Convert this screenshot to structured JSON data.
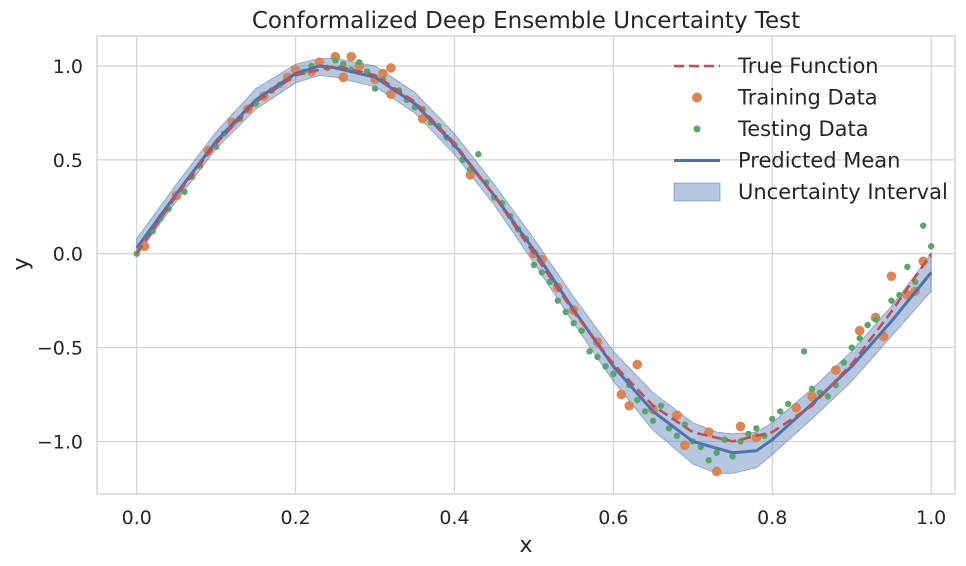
{
  "chart_data": {
    "type": "line",
    "title": "Conformalized Deep Ensemble Uncertainty Test",
    "xlabel": "x",
    "ylabel": "y",
    "xlim": [
      -0.05,
      1.03
    ],
    "ylim": [
      -1.28,
      1.16
    ],
    "x_ticks": [
      0.0,
      0.2,
      0.4,
      0.6,
      0.8,
      1.0
    ],
    "x_tick_labels": [
      "0.0",
      "0.2",
      "0.4",
      "0.6",
      "0.8",
      "1.0"
    ],
    "y_ticks": [
      -1.0,
      -0.5,
      0.0,
      0.5,
      1.0
    ],
    "y_tick_labels": [
      "−1.0",
      "−0.5",
      "0.0",
      "0.5",
      "1.0"
    ],
    "grid": true,
    "legend_position": "top-right",
    "colors": {
      "true_function": "#c44e52",
      "training": "#dd8452",
      "testing": "#55a868",
      "predicted": "#4c72b0",
      "band": "#4c72b0"
    },
    "legend": [
      {
        "key": "true",
        "label": "True Function"
      },
      {
        "key": "train",
        "label": "Training Data"
      },
      {
        "key": "test",
        "label": "Testing Data"
      },
      {
        "key": "mean",
        "label": "Predicted Mean"
      },
      {
        "key": "band",
        "label": "Uncertainty Interval"
      }
    ],
    "true_function": {
      "x": [
        0.0,
        0.05,
        0.1,
        0.15,
        0.2,
        0.25,
        0.3,
        0.35,
        0.4,
        0.45,
        0.5,
        0.55,
        0.6,
        0.65,
        0.7,
        0.75,
        0.8,
        0.85,
        0.9,
        0.95,
        1.0
      ],
      "y": [
        0.0,
        0.309,
        0.588,
        0.809,
        0.951,
        1.0,
        0.951,
        0.809,
        0.588,
        0.309,
        0.0,
        -0.309,
        -0.588,
        -0.809,
        -0.951,
        -1.0,
        -0.951,
        -0.809,
        -0.588,
        -0.309,
        0.0
      ]
    },
    "predicted_mean": {
      "x": [
        0.0,
        0.05,
        0.1,
        0.15,
        0.2,
        0.23,
        0.25,
        0.3,
        0.35,
        0.4,
        0.45,
        0.5,
        0.55,
        0.6,
        0.65,
        0.7,
        0.75,
        0.78,
        0.8,
        0.85,
        0.9,
        0.95,
        1.0
      ],
      "y": [
        0.03,
        0.32,
        0.6,
        0.82,
        0.96,
        1.0,
        0.99,
        0.94,
        0.8,
        0.58,
        0.31,
        0.02,
        -0.3,
        -0.6,
        -0.84,
        -1.0,
        -1.06,
        -1.05,
        -0.99,
        -0.8,
        -0.6,
        -0.36,
        -0.1
      ]
    },
    "uncertainty_interval": {
      "x": [
        0.0,
        0.05,
        0.1,
        0.15,
        0.2,
        0.23,
        0.25,
        0.3,
        0.35,
        0.4,
        0.45,
        0.5,
        0.55,
        0.6,
        0.65,
        0.7,
        0.73,
        0.75,
        0.78,
        0.8,
        0.85,
        0.9,
        0.95,
        1.0
      ],
      "lower": [
        -0.01,
        0.28,
        0.56,
        0.77,
        0.91,
        0.95,
        0.94,
        0.89,
        0.75,
        0.53,
        0.26,
        -0.05,
        -0.37,
        -0.68,
        -0.94,
        -1.12,
        -1.17,
        -1.17,
        -1.14,
        -1.07,
        -0.88,
        -0.68,
        -0.44,
        -0.2
      ],
      "upper": [
        0.08,
        0.37,
        0.65,
        0.88,
        1.01,
        1.04,
        1.04,
        1.0,
        0.86,
        0.64,
        0.37,
        0.08,
        -0.23,
        -0.52,
        -0.74,
        -0.9,
        -0.95,
        -0.96,
        -0.95,
        -0.9,
        -0.72,
        -0.52,
        -0.28,
        0.0
      ]
    },
    "training_data": [
      [
        0.01,
        0.04
      ],
      [
        0.05,
        0.31
      ],
      [
        0.09,
        0.55
      ],
      [
        0.12,
        0.7
      ],
      [
        0.14,
        0.77
      ],
      [
        0.16,
        0.84
      ],
      [
        0.19,
        0.94
      ],
      [
        0.2,
        0.98
      ],
      [
        0.22,
        0.97
      ],
      [
        0.23,
        1.02
      ],
      [
        0.25,
        1.05
      ],
      [
        0.26,
        0.94
      ],
      [
        0.27,
        1.05
      ],
      [
        0.28,
        1.0
      ],
      [
        0.3,
        0.93
      ],
      [
        0.31,
        0.96
      ],
      [
        0.32,
        0.99
      ],
      [
        0.32,
        0.85
      ],
      [
        0.36,
        0.72
      ],
      [
        0.42,
        0.42
      ],
      [
        0.5,
        0.0
      ],
      [
        0.51,
        -0.03
      ],
      [
        0.53,
        -0.18
      ],
      [
        0.55,
        -0.3
      ],
      [
        0.58,
        -0.47
      ],
      [
        0.61,
        -0.75
      ],
      [
        0.62,
        -0.81
      ],
      [
        0.63,
        -0.59
      ],
      [
        0.65,
        -0.83
      ],
      [
        0.68,
        -0.86
      ],
      [
        0.69,
        -1.02
      ],
      [
        0.72,
        -0.95
      ],
      [
        0.73,
        -1.16
      ],
      [
        0.76,
        -0.92
      ],
      [
        0.78,
        -0.98
      ],
      [
        0.83,
        -0.82
      ],
      [
        0.85,
        -0.76
      ],
      [
        0.88,
        -0.62
      ],
      [
        0.91,
        -0.41
      ],
      [
        0.93,
        -0.34
      ],
      [
        0.94,
        -0.44
      ],
      [
        0.95,
        -0.12
      ],
      [
        0.97,
        -0.22
      ],
      [
        0.98,
        -0.2
      ],
      [
        0.99,
        -0.04
      ]
    ],
    "testing_data": [
      [
        0.0,
        0.0
      ],
      [
        0.02,
        0.12
      ],
      [
        0.03,
        0.19
      ],
      [
        0.04,
        0.24
      ],
      [
        0.06,
        0.33
      ],
      [
        0.07,
        0.41
      ],
      [
        0.08,
        0.47
      ],
      [
        0.1,
        0.57
      ],
      [
        0.11,
        0.64
      ],
      [
        0.13,
        0.72
      ],
      [
        0.15,
        0.8
      ],
      [
        0.17,
        0.87
      ],
      [
        0.18,
        0.9
      ],
      [
        0.21,
        0.97
      ],
      [
        0.22,
        1.0
      ],
      [
        0.24,
        0.99
      ],
      [
        0.25,
        1.03
      ],
      [
        0.26,
        1.01
      ],
      [
        0.27,
        0.98
      ],
      [
        0.28,
        1.02
      ],
      [
        0.29,
        0.97
      ],
      [
        0.3,
        0.88
      ],
      [
        0.31,
        0.93
      ],
      [
        0.33,
        0.87
      ],
      [
        0.34,
        0.82
      ],
      [
        0.35,
        0.78
      ],
      [
        0.36,
        0.77
      ],
      [
        0.37,
        0.7
      ],
      [
        0.38,
        0.68
      ],
      [
        0.39,
        0.62
      ],
      [
        0.4,
        0.58
      ],
      [
        0.41,
        0.5
      ],
      [
        0.42,
        0.45
      ],
      [
        0.43,
        0.53
      ],
      [
        0.44,
        0.38
      ],
      [
        0.45,
        0.3
      ],
      [
        0.46,
        0.27
      ],
      [
        0.47,
        0.2
      ],
      [
        0.48,
        0.13
      ],
      [
        0.49,
        0.08
      ],
      [
        0.5,
        -0.06
      ],
      [
        0.51,
        -0.1
      ],
      [
        0.52,
        -0.15
      ],
      [
        0.53,
        -0.25
      ],
      [
        0.54,
        -0.31
      ],
      [
        0.55,
        -0.37
      ],
      [
        0.56,
        -0.41
      ],
      [
        0.57,
        -0.52
      ],
      [
        0.58,
        -0.55
      ],
      [
        0.59,
        -0.6
      ],
      [
        0.6,
        -0.64
      ],
      [
        0.62,
        -0.7
      ],
      [
        0.63,
        -0.78
      ],
      [
        0.64,
        -0.84
      ],
      [
        0.65,
        -0.89
      ],
      [
        0.66,
        -0.81
      ],
      [
        0.67,
        -0.93
      ],
      [
        0.68,
        -0.97
      ],
      [
        0.69,
        -0.91
      ],
      [
        0.7,
        -1.0
      ],
      [
        0.71,
        -1.03
      ],
      [
        0.72,
        -1.1
      ],
      [
        0.73,
        -1.06
      ],
      [
        0.74,
        -0.99
      ],
      [
        0.75,
        -1.08
      ],
      [
        0.76,
        -1.0
      ],
      [
        0.77,
        -0.96
      ],
      [
        0.78,
        -0.93
      ],
      [
        0.79,
        -0.97
      ],
      [
        0.8,
        -0.88
      ],
      [
        0.81,
        -0.84
      ],
      [
        0.82,
        -0.8
      ],
      [
        0.84,
        -0.52
      ],
      [
        0.85,
        -0.72
      ],
      [
        0.86,
        -0.74
      ],
      [
        0.87,
        -0.76
      ],
      [
        0.88,
        -0.7
      ],
      [
        0.89,
        -0.58
      ],
      [
        0.9,
        -0.5
      ],
      [
        0.91,
        -0.45
      ],
      [
        0.92,
        -0.38
      ],
      [
        0.93,
        -0.35
      ],
      [
        0.95,
        -0.25
      ],
      [
        0.96,
        -0.22
      ],
      [
        0.97,
        -0.07
      ],
      [
        0.98,
        -0.15
      ],
      [
        0.99,
        0.15
      ],
      [
        1.0,
        0.04
      ]
    ]
  }
}
